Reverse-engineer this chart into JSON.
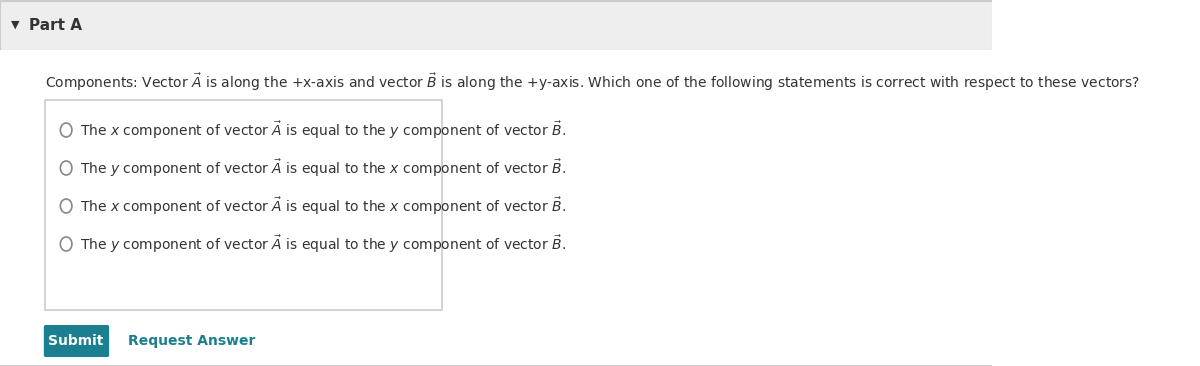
{
  "bg_color": "#f5f5f5",
  "white_bg": "#ffffff",
  "header_bg": "#eeeeee",
  "header_text": "Part A",
  "header_triangle": "▼",
  "question": "Components: Vector Ä is along the +x-axis and vector Ḃ is along the +y-axis. Which one of the following statements is correct with respect to these vectors?",
  "options": [
    "The x component of vector Ä is equal to the y component of vector Ḃ.",
    "The y component of vector Ä is equal to the x component of vector Ḃ.",
    "The x component of vector Ä is equal to the x component of vector Ḃ.",
    "The y component of vector Ä is equal to the y component of vector Ḃ."
  ],
  "submit_bg": "#1a7f8e",
  "submit_text": "Submit",
  "request_text": "Request Answer",
  "request_color": "#1a7f8e",
  "border_color": "#cccccc",
  "text_color": "#333333",
  "header_fontsize": 11,
  "question_fontsize": 10,
  "option_fontsize": 10,
  "button_fontsize": 10
}
